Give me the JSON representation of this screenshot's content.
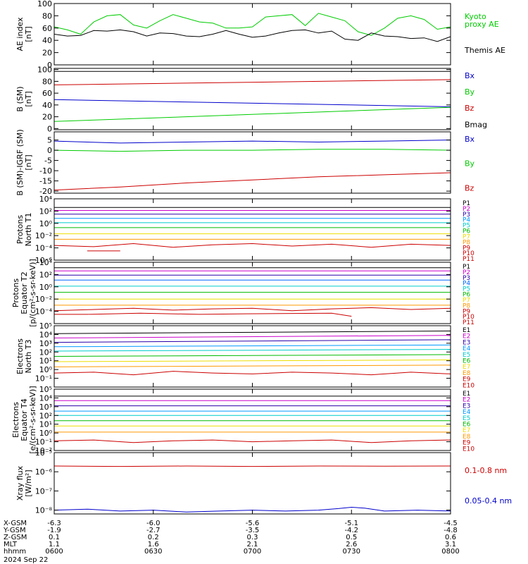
{
  "chart_data": [
    {
      "type": "line",
      "ylabel": "AE index\n[nT]",
      "ylim": [
        0,
        100
      ],
      "ticks": [
        "0",
        "20",
        "40",
        "60",
        "80",
        "100"
      ],
      "tick_values": [
        0,
        20,
        40,
        60,
        80,
        100
      ],
      "scale": "linear",
      "series": [
        {
          "name": "Kyoto\nproxy AE",
          "color": "#00cc00",
          "x": [
            0,
            2,
            4,
            6,
            8,
            10,
            12,
            14,
            16,
            18,
            20,
            22,
            24,
            26,
            28,
            30,
            32,
            34,
            36,
            38,
            40,
            42,
            44,
            46,
            48,
            50,
            52,
            54,
            56,
            58,
            60
          ],
          "values": [
            62,
            57,
            50,
            70,
            80,
            82,
            65,
            60,
            72,
            82,
            76,
            70,
            68,
            60,
            60,
            62,
            78,
            80,
            82,
            64,
            84,
            78,
            72,
            54,
            48,
            60,
            76,
            80,
            74,
            58,
            62
          ]
        },
        {
          "name": "Themis AE",
          "color": "#000000",
          "x": [
            0,
            2,
            4,
            6,
            8,
            10,
            12,
            14,
            16,
            18,
            20,
            22,
            24,
            26,
            28,
            30,
            32,
            34,
            36,
            38,
            40,
            42,
            44,
            46,
            48,
            50,
            52,
            54,
            56,
            58,
            60
          ],
          "values": [
            50,
            47,
            48,
            56,
            55,
            57,
            54,
            47,
            52,
            51,
            47,
            46,
            50,
            56,
            50,
            45,
            47,
            52,
            56,
            57,
            52,
            55,
            42,
            40,
            52,
            47,
            46,
            43,
            44,
            38,
            46
          ]
        }
      ]
    },
    {
      "type": "line",
      "ylabel": "B (SM)\n[nT]",
      "ylim": [
        -2,
        102
      ],
      "ticks": [
        "0",
        "20",
        "40",
        "60",
        "80",
        "100"
      ],
      "tick_values": [
        0,
        20,
        40,
        60,
        80,
        100
      ],
      "scale": "linear",
      "series": [
        {
          "name": "Bx",
          "color": "#0000cc",
          "x": [
            0,
            60
          ],
          "values": [
            49,
            37
          ]
        },
        {
          "name": "By",
          "color": "#00cc00",
          "x": [
            0,
            60
          ],
          "values": [
            12,
            36
          ]
        },
        {
          "name": "Bz",
          "color": "#cc0000",
          "x": [
            0,
            60
          ],
          "values": [
            74,
            83
          ]
        },
        {
          "name": "Bmag",
          "color": "#000000",
          "x": [
            0,
            60
          ],
          "values": [
            97,
            97
          ]
        }
      ]
    },
    {
      "type": "line",
      "ylabel": "B (SM)-IGRF (SM)\n[nT]",
      "ylim": [
        -21,
        9
      ],
      "ticks": [
        "-20",
        "-15",
        "-10",
        "-5",
        "0",
        "5"
      ],
      "tick_values": [
        -20,
        -15,
        -10,
        -5,
        0,
        5
      ],
      "scale": "linear",
      "series": [
        {
          "name": "Bx",
          "color": "#0000cc",
          "x": [
            0,
            10,
            20,
            30,
            40,
            50,
            60
          ],
          "values": [
            4.5,
            3.5,
            4,
            4.5,
            4,
            4.5,
            5
          ]
        },
        {
          "name": "By",
          "color": "#00cc00",
          "x": [
            0,
            10,
            20,
            30,
            40,
            50,
            60
          ],
          "values": [
            0,
            -0.5,
            0,
            0,
            0.5,
            0.5,
            0
          ]
        },
        {
          "name": "Bz",
          "color": "#cc0000",
          "x": [
            0,
            10,
            20,
            30,
            40,
            50,
            60
          ],
          "values": [
            -19.5,
            -18,
            -16,
            -14.5,
            -13,
            -12,
            -11
          ]
        }
      ]
    },
    {
      "type": "line",
      "ylabel": "Protons\nNorth T1",
      "ylim": [
        -6,
        4
      ],
      "ticks": [
        "10^4",
        "10^2",
        "10^0",
        "10^-2",
        "10^-4",
        "10^-6"
      ],
      "tick_values": [
        4,
        2,
        0,
        -2,
        -4,
        -6
      ],
      "scale": "log",
      "series": [
        {
          "name": "P1",
          "color": "#000000",
          "x": [
            0,
            60
          ],
          "values": [
            2.6,
            2.6
          ]
        },
        {
          "name": "P2",
          "color": "#cc00cc",
          "x": [
            0,
            60
          ],
          "values": [
            2.1,
            2.1
          ]
        },
        {
          "name": "P3",
          "color": "#2a00aa",
          "x": [
            0,
            60
          ],
          "values": [
            1.5,
            1.5
          ]
        },
        {
          "name": "P4",
          "color": "#0099ff",
          "x": [
            0,
            60
          ],
          "values": [
            0.8,
            0.8
          ]
        },
        {
          "name": "P5",
          "color": "#00cccc",
          "x": [
            0,
            60
          ],
          "values": [
            0.1,
            0.1
          ]
        },
        {
          "name": "P6",
          "color": "#00bb00",
          "x": [
            0,
            60
          ],
          "values": [
            -0.7,
            -0.7
          ]
        },
        {
          "name": "P7",
          "color": "#eedd00",
          "x": [
            0,
            60
          ],
          "values": [
            -1.7,
            -1.7
          ]
        },
        {
          "name": "P8",
          "color": "#ff9900",
          "x": [
            0,
            60
          ],
          "values": [
            -2.6,
            -2.6
          ]
        },
        {
          "name": "P9",
          "color": "#cc0000",
          "x": [
            0,
            6,
            12,
            18,
            24,
            30,
            36,
            42,
            48,
            54,
            60
          ],
          "values": [
            -3.6,
            -3.8,
            -3.3,
            -3.9,
            -3.5,
            -3.3,
            -3.7,
            -3.4,
            -3.9,
            -3.4,
            -3.6
          ]
        },
        {
          "name": "P10",
          "color": "#cc0000",
          "x": [
            5,
            10
          ],
          "values": [
            -4.5,
            -4.5
          ]
        },
        {
          "name": "P11",
          "color": "#cc0000",
          "x": [
            0,
            60
          ],
          "values": [
            -9,
            -9
          ]
        }
      ]
    },
    {
      "type": "line",
      "ylabel": "Protons\nEquator T2\n[p/(cm^2-s-sr-keV)]",
      "ylim": [
        -6,
        4
      ],
      "ticks": [
        "10^4",
        "10^2",
        "10^0",
        "10^-2",
        "10^-4"
      ],
      "tick_values": [
        4,
        2,
        0,
        -2,
        -4
      ],
      "scale": "log",
      "series": [
        {
          "name": "P1",
          "color": "#000000",
          "x": [
            0,
            60
          ],
          "values": [
            3.1,
            3.1
          ]
        },
        {
          "name": "P2",
          "color": "#cc00cc",
          "x": [
            0,
            60
          ],
          "values": [
            2.6,
            2.6
          ]
        },
        {
          "name": "P3",
          "color": "#2a00aa",
          "x": [
            0,
            60
          ],
          "values": [
            1.9,
            1.9
          ]
        },
        {
          "name": "P4",
          "color": "#0066ff",
          "x": [
            0,
            60
          ],
          "values": [
            1.1,
            1.1
          ]
        },
        {
          "name": "P5",
          "color": "#00cccc",
          "x": [
            0,
            60
          ],
          "values": [
            0.1,
            0.1
          ]
        },
        {
          "name": "P6",
          "color": "#00bb00",
          "x": [
            0,
            60
          ],
          "values": [
            -0.9,
            -0.9
          ]
        },
        {
          "name": "P7",
          "color": "#eedd00",
          "x": [
            0,
            60
          ],
          "values": [
            -2,
            -2
          ]
        },
        {
          "name": "P8",
          "color": "#ff9900",
          "x": [
            0,
            60
          ],
          "values": [
            -3,
            -3
          ]
        },
        {
          "name": "P9",
          "color": "#cc0000",
          "x": [
            0,
            6,
            12,
            18,
            24,
            30,
            36,
            42,
            48,
            54,
            60
          ],
          "values": [
            -3.9,
            -3.7,
            -3.5,
            -3.8,
            -3.6,
            -3.5,
            -3.9,
            -3.6,
            -3.4,
            -3.7,
            -3.5
          ]
        },
        {
          "name": "P10",
          "color": "#cc0000",
          "x": [
            0,
            5,
            13,
            22,
            29,
            42,
            45
          ],
          "values": [
            -4.5,
            -4.5,
            -4.3,
            -4.5,
            -4.4,
            -4.3,
            -4.8
          ]
        },
        {
          "name": "P11",
          "color": "#cc0000",
          "x": [
            0,
            60
          ],
          "values": [
            -9,
            -9
          ]
        }
      ]
    },
    {
      "type": "line",
      "ylabel": "Electrons\nNorth T3",
      "ylim": [
        -2,
        5
      ],
      "ticks": [
        "10^5",
        "10^4",
        "10^3",
        "10^2",
        "10^1",
        "10^0",
        "10^-1"
      ],
      "tick_values": [
        5,
        4,
        3,
        2,
        1,
        0,
        -1
      ],
      "scale": "log",
      "series": [
        {
          "name": "E1",
          "color": "#000000",
          "x": [
            0,
            60
          ],
          "values": [
            4.1,
            4.4
          ]
        },
        {
          "name": "E2",
          "color": "#cc00cc",
          "x": [
            0,
            60
          ],
          "values": [
            3.6,
            3.9
          ]
        },
        {
          "name": "E3",
          "color": "#2a00aa",
          "x": [
            0,
            60
          ],
          "values": [
            3.1,
            3.4
          ]
        },
        {
          "name": "E4",
          "color": "#0099ff",
          "x": [
            0,
            60
          ],
          "values": [
            2.6,
            2.8
          ]
        },
        {
          "name": "E5",
          "color": "#00cccc",
          "x": [
            0,
            60
          ],
          "values": [
            2.1,
            2.3
          ]
        },
        {
          "name": "E6",
          "color": "#00bb00",
          "x": [
            0,
            60
          ],
          "values": [
            1.5,
            1.7
          ]
        },
        {
          "name": "E7",
          "color": "#eedd00",
          "x": [
            0,
            60
          ],
          "values": [
            0.9,
            1.1
          ]
        },
        {
          "name": "E8",
          "color": "#ff9900",
          "x": [
            0,
            60
          ],
          "values": [
            0.3,
            0.5
          ]
        },
        {
          "name": "E9",
          "color": "#cc0000",
          "x": [
            0,
            6,
            12,
            18,
            24,
            30,
            36,
            42,
            48,
            54,
            60
          ],
          "values": [
            -0.4,
            -0.3,
            -0.6,
            -0.2,
            -0.4,
            -0.5,
            -0.3,
            -0.4,
            -0.6,
            -0.3,
            -0.5
          ]
        },
        {
          "name": "E10",
          "color": "#cc0000",
          "x": [
            0,
            60
          ],
          "values": [
            -9,
            -9
          ]
        }
      ]
    },
    {
      "type": "line",
      "ylabel": "Electrons\nEquator T4\n[e/(cm^2-s-sr-keV)]",
      "ylim": [
        -2,
        5
      ],
      "ticks": [
        "10^5",
        "10^4",
        "10^3",
        "10^2",
        "10^1",
        "10^0",
        "10^-1",
        "10^-2"
      ],
      "tick_values": [
        5,
        4,
        3,
        2,
        1,
        0,
        -1,
        -2
      ],
      "scale": "log",
      "series": [
        {
          "name": "E1",
          "color": "#000000",
          "x": [
            0,
            60
          ],
          "values": [
            4.2,
            4.2
          ]
        },
        {
          "name": "E2",
          "color": "#cc00cc",
          "x": [
            0,
            60
          ],
          "values": [
            3.7,
            3.7
          ]
        },
        {
          "name": "E3",
          "color": "#2a00aa",
          "x": [
            0,
            60
          ],
          "values": [
            3.1,
            3.1
          ]
        },
        {
          "name": "E4",
          "color": "#0099ff",
          "x": [
            0,
            60
          ],
          "values": [
            2.5,
            2.5
          ]
        },
        {
          "name": "E5",
          "color": "#00cccc",
          "x": [
            0,
            60
          ],
          "values": [
            2.0,
            2.0
          ]
        },
        {
          "name": "E6",
          "color": "#00bb00",
          "x": [
            0,
            60
          ],
          "values": [
            1.4,
            1.4
          ]
        },
        {
          "name": "E7",
          "color": "#eedd00",
          "x": [
            0,
            60
          ],
          "values": [
            0.8,
            0.8
          ]
        },
        {
          "name": "E8",
          "color": "#ff9900",
          "x": [
            0,
            60
          ],
          "values": [
            0.1,
            0.1
          ]
        },
        {
          "name": "E9",
          "color": "#cc0000",
          "x": [
            0,
            6,
            12,
            18,
            24,
            30,
            36,
            42,
            48,
            54,
            60
          ],
          "values": [
            -0.9,
            -0.8,
            -1.1,
            -0.9,
            -0.8,
            -1.0,
            -0.9,
            -0.8,
            -1.1,
            -0.9,
            -0.8
          ]
        },
        {
          "name": "E10",
          "color": "#cc0000",
          "x": [
            0,
            60
          ],
          "values": [
            -9,
            -9
          ]
        }
      ]
    },
    {
      "type": "line",
      "ylabel": "Xray flux\n[W/m^2]",
      "ylim": [
        -8.2,
        -5
      ],
      "ticks": [
        "10^-5",
        "10^-6",
        "10^-7",
        "10^-8"
      ],
      "tick_values": [
        -5,
        -6,
        -7,
        -8
      ],
      "scale": "log",
      "series": [
        {
          "name": "0.1-0.8 nm",
          "color": "#cc0000",
          "x": [
            0,
            10,
            20,
            30,
            40,
            50,
            60
          ],
          "values": [
            -5.7,
            -5.72,
            -5.7,
            -5.72,
            -5.7,
            -5.71,
            -5.7
          ]
        },
        {
          "name": "0.05-0.4 nm",
          "color": "#0000cc",
          "x": [
            0,
            5,
            10,
            15,
            20,
            25,
            30,
            35,
            40,
            43,
            45,
            47,
            50,
            55,
            60
          ],
          "values": [
            -8.0,
            -7.95,
            -8.05,
            -8.0,
            -8.1,
            -8.05,
            -8.0,
            -8.05,
            -8.0,
            -7.92,
            -7.85,
            -7.9,
            -8.05,
            -8.0,
            -8.05
          ]
        }
      ]
    }
  ],
  "time_axis": {
    "xlim": [
      "06:00",
      "08:00"
    ],
    "rows": [
      {
        "label": "X-GSM",
        "values": [
          "-6.3",
          "-6.0",
          "-5.6",
          "-5.1",
          "-4.5"
        ]
      },
      {
        "label": "Y-GSM",
        "values": [
          "-1.9",
          "-2.7",
          "-3.5",
          "-4.2",
          "-4.8"
        ]
      },
      {
        "label": "Z-GSM",
        "values": [
          "0.1",
          "0.2",
          "0.3",
          "0.5",
          "0.6"
        ]
      },
      {
        "label": "MLT",
        "values": [
          "1.1",
          "1.6",
          "2.1",
          "2.6",
          "3.1"
        ]
      },
      {
        "label": "hhmm",
        "values": [
          "0600",
          "0630",
          "0700",
          "0730",
          "0800"
        ]
      }
    ],
    "date": "2024 Sep 22"
  }
}
